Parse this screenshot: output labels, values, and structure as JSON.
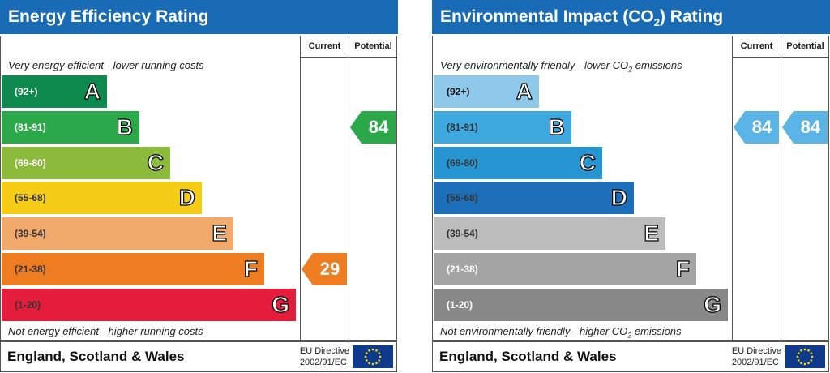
{
  "energy": {
    "title": "Energy Efficiency Rating",
    "current_label": "Current",
    "potential_label": "Potential",
    "top_note": "Very energy efficient - lower running costs",
    "bottom_note": "Not energy efficient - higher running costs",
    "bands": [
      {
        "range": "(92+)",
        "letter": "A",
        "color": "#0f8a4e",
        "range_color": "#ffffff"
      },
      {
        "range": "(81-91)",
        "letter": "B",
        "color": "#2ba84a",
        "range_color": "#ffffff"
      },
      {
        "range": "(69-80)",
        "letter": "C",
        "color": "#8cbb3c",
        "range_color": "#ffffff"
      },
      {
        "range": "(55-68)",
        "letter": "D",
        "color": "#f5cc16",
        "range_color": "#333333"
      },
      {
        "range": "(39-54)",
        "letter": "E",
        "color": "#f2a96c",
        "range_color": "#333333"
      },
      {
        "range": "(21-38)",
        "letter": "F",
        "color": "#ee7d22",
        "range_color": "#333333"
      },
      {
        "range": "(1-20)",
        "letter": "G",
        "color": "#e31d3b",
        "range_color": "#333333"
      }
    ],
    "current": {
      "value": "29",
      "band": "F",
      "color": "#ee7d22"
    },
    "potential": {
      "value": "84",
      "band": "B",
      "color": "#2ba84a"
    },
    "footer_region": "England, Scotland & Wales",
    "footer_directive_line1": "EU Directive",
    "footer_directive_line2": "2002/91/EC"
  },
  "environment": {
    "title_main": "Environmental Impact (CO",
    "title_sub": "2",
    "title_end": ") Rating",
    "current_label": "Current",
    "potential_label": "Potential",
    "top_note_main": "Very environmentally friendly - lower CO",
    "top_note_sub": "2",
    "top_note_end": " emissions",
    "bottom_note_main": "Not environmentally friendly - higher CO",
    "bottom_note_sub": "2",
    "bottom_note_end": " emissions",
    "bands": [
      {
        "range": "(92+)",
        "letter": "A",
        "color": "#8ec8ea",
        "range_color": "#111111"
      },
      {
        "range": "(81-91)",
        "letter": "B",
        "color": "#3ea9de",
        "range_color": "#333333"
      },
      {
        "range": "(69-80)",
        "letter": "C",
        "color": "#2695d2",
        "range_color": "#333333"
      },
      {
        "range": "(55-68)",
        "letter": "D",
        "color": "#1c6fb8",
        "range_color": "#333333"
      },
      {
        "range": "(39-54)",
        "letter": "E",
        "color": "#bcbcbc",
        "range_color": "#333333"
      },
      {
        "range": "(21-38)",
        "letter": "F",
        "color": "#a4a4a4",
        "range_color": "#ffffff"
      },
      {
        "range": "(1-20)",
        "letter": "G",
        "color": "#888888",
        "range_color": "#ffffff"
      }
    ],
    "current": {
      "value": "84",
      "band": "B",
      "color": "#5ab4e5"
    },
    "potential": {
      "value": "84",
      "band": "B",
      "color": "#5ab4e5"
    },
    "footer_region": "England, Scotland & Wales",
    "footer_directive_line1": "EU Directive",
    "footer_directive_line2": "2002/91/EC"
  }
}
